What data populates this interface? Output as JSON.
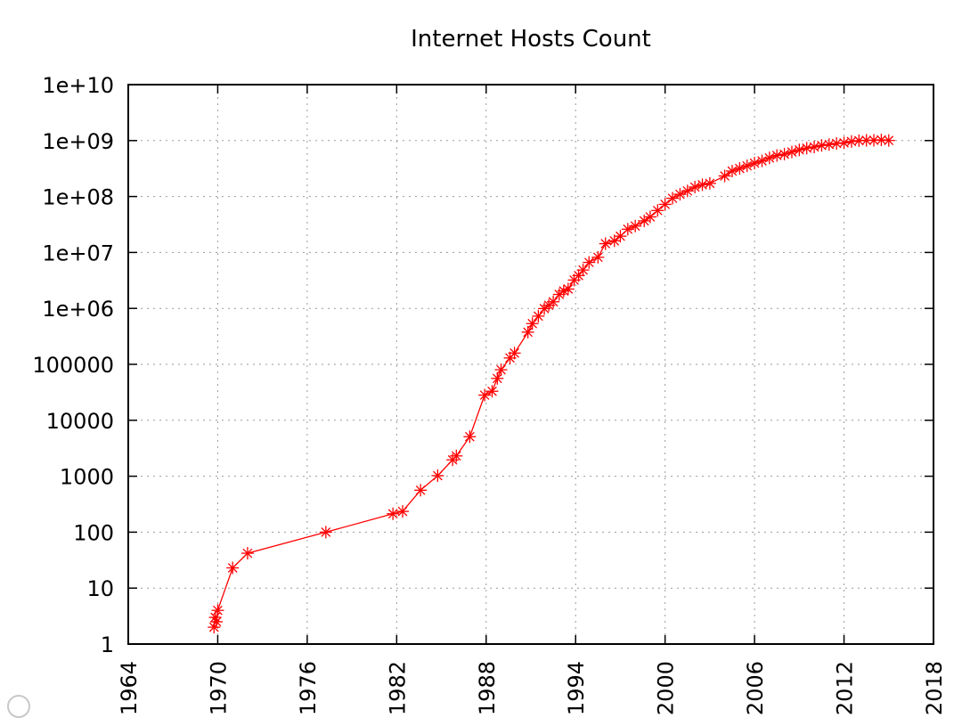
{
  "chart_data": {
    "type": "line",
    "title": "Internet Hosts Count",
    "xlabel": "",
    "ylabel": "",
    "xlim": [
      1964,
      2018
    ],
    "ylim": [
      1,
      10000000000
    ],
    "y_scale": "log",
    "grid": true,
    "marker": "asterisk",
    "line_color": "#ff0000",
    "x_ticks": [
      1964,
      1970,
      1976,
      1982,
      1988,
      1994,
      2000,
      2006,
      2012,
      2018
    ],
    "y_ticks": [
      1,
      10,
      100,
      1000,
      10000,
      100000,
      1000000,
      10000000,
      100000000,
      1000000000,
      10000000000
    ],
    "y_tick_labels": [
      "1",
      "10",
      "100",
      "1000",
      "10000",
      "100000",
      "1e+06",
      "1e+07",
      "1e+08",
      "1e+09",
      "1e+10"
    ],
    "series": [
      {
        "x": [
          1969.75,
          1969.83,
          1969.92,
          1970.0,
          1971.0,
          1972.0,
          1977.25,
          1981.75,
          1982.4,
          1983.6,
          1984.75,
          1985.75,
          1986.0,
          1986.9,
          1987.9,
          1988.4,
          1988.75,
          1989.0,
          1989.6,
          1989.9,
          1990.8,
          1991.1,
          1991.5,
          1991.9,
          1992.2,
          1992.5,
          1992.9,
          1993.2,
          1993.5,
          1993.9,
          1994.2,
          1994.5,
          1994.9,
          1995.5,
          1996.0,
          1996.6,
          1997.0,
          1997.5,
          1998.0,
          1998.6,
          1999.0,
          1999.5,
          2000.0,
          2000.5,
          2001.0,
          2001.5,
          2002.0,
          2002.5,
          2003.0,
          2004.0,
          2004.5,
          2005.0,
          2005.5,
          2006.0,
          2006.5,
          2007.0,
          2007.5,
          2008.0,
          2008.5,
          2009.0,
          2009.5,
          2010.0,
          2010.5,
          2011.0,
          2011.5,
          2012.0,
          2012.5,
          2013.0,
          2013.5,
          2014.0,
          2014.5,
          2015.0
        ],
        "y": [
          2,
          3,
          2.5,
          4,
          23,
          42,
          100,
          213,
          235,
          562,
          1024,
          1961,
          2308,
          5089,
          28174,
          33000,
          56000,
          80000,
          130000,
          159000,
          376000,
          535000,
          727000,
          992000,
          1136000,
          1313000,
          1776000,
          2056000,
          2217000,
          3212000,
          3864000,
          4852000,
          6642000,
          8200000,
          14352000,
          16146000,
          19540000,
          26053000,
          29670000,
          36739000,
          43230000,
          56218000,
          72398000,
          93047000,
          109574000,
          125888000,
          147345000,
          162128000,
          171638000,
          233101000,
          285139000,
          317646000,
          353284000,
          394991000,
          433193000,
          489774000,
          541677000,
          570937000,
          625226000,
          681064000,
          732740000,
          768913000,
          818374000,
          849869000,
          888239000,
          908585000,
          963518000,
          996230000,
          1010251000,
          1012706000,
          1028544000,
          1005000000
        ]
      }
    ]
  }
}
